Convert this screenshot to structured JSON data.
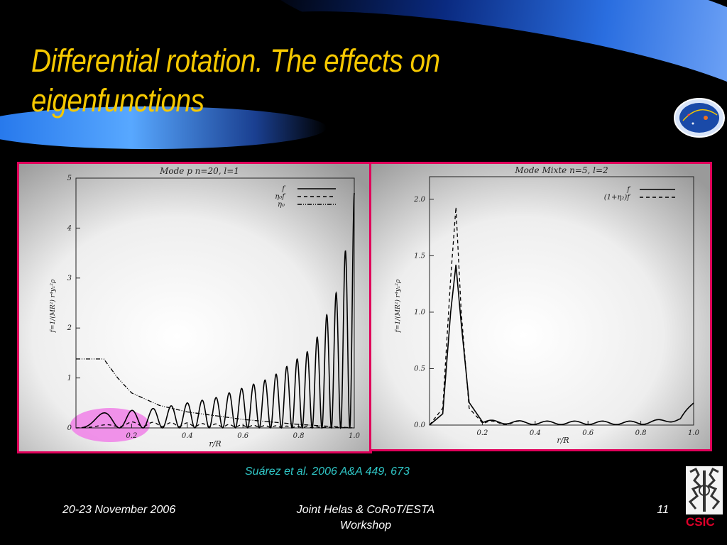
{
  "slide": {
    "title_line1": "Differential rotation. The effects on",
    "title_line2": "eigenfunctions",
    "citation": "Suárez et al. 2006 A&A 449, 673",
    "date": "20-23 November 2006",
    "conference": "Joint Helas & CoRoT/ESTA Workshop",
    "page_number": "11",
    "institution": "CSIC"
  },
  "colors": {
    "title": "#f5c800",
    "panel_border": "#e0005a",
    "citation": "#2fc6c6",
    "highlight": "#f080e8"
  },
  "chart_data": [
    {
      "type": "line",
      "title": "Mode p n=20, l=1",
      "xlabel": "r/R",
      "ylabel": "f=1/(MR²) r⁴y₁²ρ",
      "xlim": [
        0.0,
        1.0
      ],
      "ylim": [
        0,
        5
      ],
      "xticks": [
        "0.2",
        "0.4",
        "0.6",
        "0.8",
        "1.0"
      ],
      "yticks": [
        "0",
        "1",
        "2",
        "3",
        "4",
        "5"
      ],
      "series": [
        {
          "name": "f",
          "style": "solid",
          "envelope_x": [
            0.1,
            0.3,
            0.5,
            0.7,
            0.85,
            0.95,
            1.0
          ],
          "envelope_y": [
            0.3,
            0.4,
            0.6,
            1.0,
            1.6,
            2.9,
            4.7
          ]
        },
        {
          "name": "η₀f",
          "style": "dashed",
          "x": [
            0.0,
            0.2,
            0.4,
            0.6,
            0.8,
            1.0
          ],
          "y": [
            0.0,
            0.12,
            0.1,
            0.06,
            0.03,
            0.0
          ]
        },
        {
          "name": "η₀",
          "style": "dash-dot",
          "x": [
            0.0,
            0.1,
            0.15,
            0.2,
            0.3,
            0.4,
            0.6,
            0.8,
            1.0
          ],
          "y": [
            1.38,
            1.38,
            1.0,
            0.7,
            0.45,
            0.32,
            0.17,
            0.07,
            0.0
          ]
        }
      ],
      "highlight": "low-r region 0.0–0.3"
    },
    {
      "type": "line",
      "title": "Mode Mixte n=5, l=2",
      "xlabel": "r/R",
      "ylabel": "f=1/(MR²) r⁴y₁²ρ",
      "xlim": [
        0.0,
        1.0
      ],
      "ylim": [
        0.0,
        2.2
      ],
      "xticks": [
        "0.2",
        "0.4",
        "0.6",
        "0.8",
        "1.0"
      ],
      "yticks": [
        "0.0",
        "0.5",
        "1.0",
        "1.5",
        "2.0"
      ],
      "series": [
        {
          "name": "f",
          "style": "solid",
          "x": [
            0.0,
            0.05,
            0.08,
            0.1,
            0.12,
            0.15,
            0.2,
            0.4,
            0.6,
            0.8,
            0.95,
            1.0
          ],
          "y": [
            0.0,
            0.1,
            1.0,
            1.42,
            0.9,
            0.2,
            0.03,
            0.02,
            0.02,
            0.02,
            0.05,
            0.2
          ]
        },
        {
          "name": "(1+η₂)f",
          "style": "dashed",
          "x": [
            0.0,
            0.05,
            0.08,
            0.1,
            0.12,
            0.15,
            0.2,
            0.4,
            0.6,
            0.8,
            0.95,
            1.0
          ],
          "y": [
            0.0,
            0.15,
            1.3,
            1.93,
            1.0,
            0.15,
            0.02,
            0.02,
            0.02,
            0.02,
            0.05,
            0.2
          ]
        }
      ]
    }
  ]
}
